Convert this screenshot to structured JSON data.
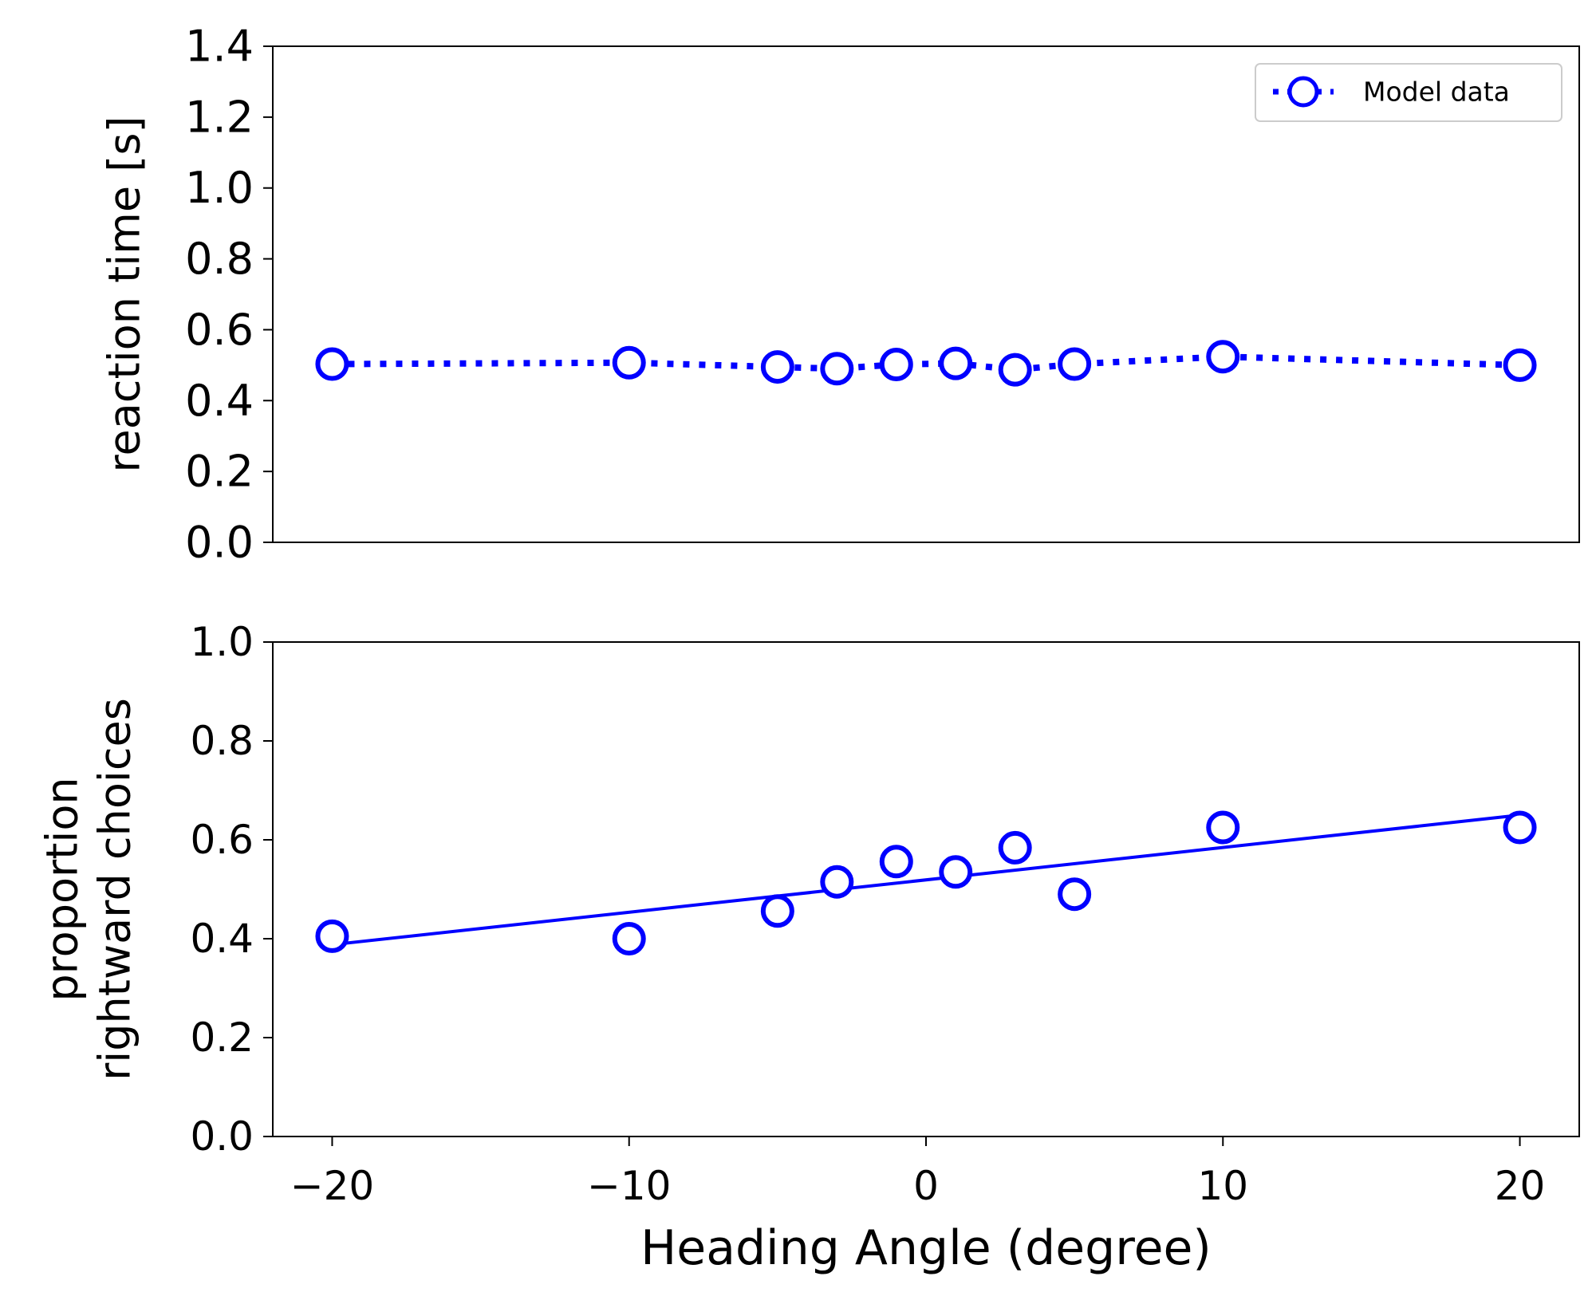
{
  "chart_data": [
    {
      "type": "line",
      "title": "",
      "xlabel": "",
      "ylabel": "reaction time [s]",
      "xlim": [
        -22,
        22
      ],
      "ylim": [
        0.0,
        1.4
      ],
      "y_ticks": [
        0.0,
        0.2,
        0.4,
        0.6,
        0.8,
        1.0,
        1.2,
        1.4
      ],
      "y_tick_labels": [
        "0.0",
        "0.2",
        "0.4",
        "0.6",
        "0.8",
        "1.0",
        "1.2",
        "1.4"
      ],
      "show_x_ticks": false,
      "grid": false,
      "legend": {
        "placement": "top-right",
        "entries": [
          "Model data"
        ]
      },
      "series": [
        {
          "name": "Model data",
          "color": "#0000ff",
          "line_style": "dotted",
          "marker": "open-circle",
          "x": [
            -20,
            -10,
            -5,
            -3,
            -1,
            1,
            3,
            5,
            10,
            20
          ],
          "y": [
            0.503,
            0.507,
            0.495,
            0.49,
            0.502,
            0.505,
            0.487,
            0.503,
            0.524,
            0.5
          ]
        }
      ]
    },
    {
      "type": "scatter",
      "title": "",
      "xlabel": "Heading Angle (degree)",
      "ylabel": [
        "proportion",
        "rightward choices"
      ],
      "xlim": [
        -22,
        22
      ],
      "ylim": [
        0.0,
        1.0
      ],
      "x_ticks": [
        -20,
        -10,
        0,
        10,
        20
      ],
      "x_tick_labels": [
        "−20",
        "−10",
        "0",
        "10",
        "20"
      ],
      "y_ticks": [
        0.0,
        0.2,
        0.4,
        0.6,
        0.8,
        1.0
      ],
      "y_tick_labels": [
        "0.0",
        "0.2",
        "0.4",
        "0.6",
        "0.8",
        "1.0"
      ],
      "grid": false,
      "series": [
        {
          "color": "#0000ff",
          "marker": "open-circle",
          "x": [
            -20,
            -10,
            -5,
            -3,
            -1,
            1,
            3,
            5,
            10,
            20
          ],
          "y": [
            0.405,
            0.4,
            0.456,
            0.515,
            0.556,
            0.535,
            0.584,
            0.49,
            0.625,
            0.625
          ]
        },
        {
          "color": "#0000ff",
          "line_style": "solid",
          "marker": "none",
          "x": [
            -20,
            20
          ],
          "y": [
            0.388,
            0.65
          ]
        }
      ]
    }
  ]
}
